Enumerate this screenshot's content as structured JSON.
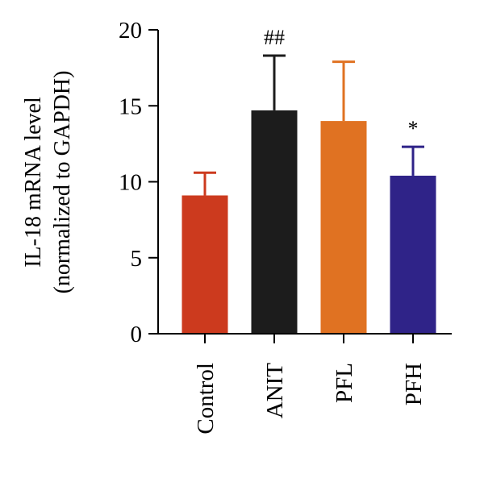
{
  "chart_data": {
    "type": "bar",
    "ylabel_lines": [
      "IL-18 mRNA level",
      "(normalized to GAPDH)"
    ],
    "xlabel": "",
    "ylim": [
      0,
      20
    ],
    "yticks": [
      0,
      5,
      10,
      15,
      20
    ],
    "categories": [
      "Control",
      "ANIT",
      "PFL",
      "PFH"
    ],
    "values": [
      9.1,
      14.7,
      14.0,
      10.4
    ],
    "errors": [
      1.5,
      3.6,
      3.9,
      1.9
    ],
    "annotations": [
      "",
      "##",
      "",
      "*"
    ],
    "colors": [
      "#cc3a1e",
      "#1c1c1c",
      "#e07222",
      "#2f2388"
    ],
    "grid": false,
    "legend": "none"
  }
}
